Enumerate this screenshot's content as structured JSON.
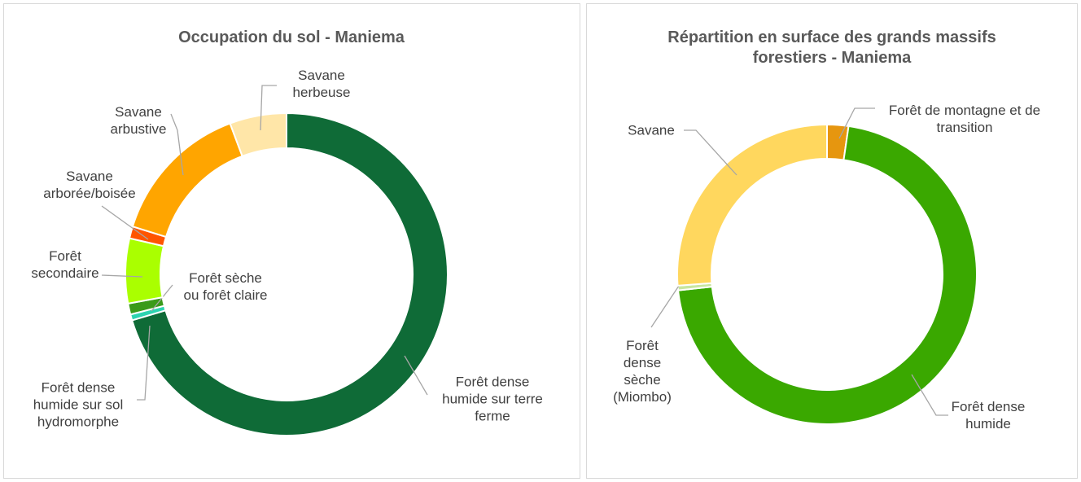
{
  "chart_data": [
    {
      "type": "donut",
      "title": "Occupation du sol - Maniema",
      "categories": [
        "Forêt dense humide sur terre ferme",
        "Forêt dense humide sur sol hydromorphe",
        "Forêt sèche ou forêt claire",
        "Forêt secondaire",
        "Savane arborée/boisée",
        "Savane arbustive",
        "Savane herbeuse"
      ],
      "values": [
        70.4,
        0.6,
        1.1,
        6.5,
        1.2,
        14.5,
        5.7
      ],
      "colors": [
        "#0f6b37",
        "#2dd4b0",
        "#3a9a1a",
        "#aaff00",
        "#ff5500",
        "#ffa500",
        "#ffe6a8"
      ]
    },
    {
      "type": "donut",
      "title": "Répartition en surface des grands massifs forestiers - Maniema",
      "categories": [
        "Forêt de montagne et de transition",
        "Forêt dense humide",
        "Forêt dense sèche (Miombo)",
        "Savane"
      ],
      "values": [
        2.3,
        71,
        0.5,
        26.2
      ],
      "colors": [
        "#e6960f",
        "#3aa800",
        "#c8e6a0",
        "#ffd75e"
      ]
    }
  ]
}
